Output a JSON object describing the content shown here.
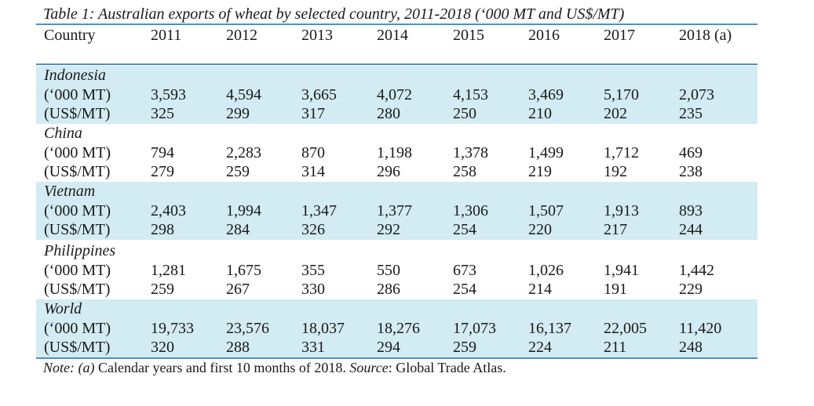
{
  "caption": "Table 1: Australian exports of wheat by selected country, 2011-2018 (‘000 MT and US$/MT)",
  "header": {
    "first": "Country",
    "years": [
      "2011",
      "2012",
      "2013",
      "2014",
      "2015",
      "2016",
      "2017",
      "2018 (a)"
    ]
  },
  "groups": [
    {
      "name": "Indonesia",
      "rows": [
        {
          "label": "(‘000 MT)",
          "values": [
            "3,593",
            "4,594",
            "3,665",
            "4,072",
            "4,153",
            "3,469",
            "5,170",
            "2,073"
          ]
        },
        {
          "label": "(US$/MT)",
          "values": [
            "325",
            "299",
            "317",
            "280",
            "250",
            "210",
            "202",
            "235"
          ]
        }
      ]
    },
    {
      "name": "China",
      "rows": [
        {
          "label": "(‘000 MT)",
          "values": [
            "794",
            "2,283",
            "870",
            "1,198",
            "1,378",
            "1,499",
            "1,712",
            "469"
          ]
        },
        {
          "label": "(US$/MT)",
          "values": [
            "279",
            "259",
            "314",
            "296",
            "258",
            "219",
            "192",
            "238"
          ]
        }
      ]
    },
    {
      "name": "Vietnam",
      "rows": [
        {
          "label": "(‘000 MT)",
          "values": [
            "2,403",
            "1,994",
            "1,347",
            "1,377",
            "1,306",
            "1,507",
            "1,913",
            "893"
          ]
        },
        {
          "label": "(US$/MT)",
          "values": [
            "298",
            "284",
            "326",
            "292",
            "254",
            "220",
            "217",
            "244"
          ]
        }
      ]
    },
    {
      "name": "Philippines",
      "rows": [
        {
          "label": "(‘000 MT)",
          "values": [
            "1,281",
            "1,675",
            "355",
            "550",
            "673",
            "1,026",
            "1,941",
            "1,442"
          ]
        },
        {
          "label": "(US$/MT)",
          "values": [
            "259",
            "267",
            "330",
            "286",
            "254",
            "214",
            "191",
            "229"
          ]
        }
      ]
    },
    {
      "name": "World",
      "rows": [
        {
          "label": "(‘000 MT)",
          "values": [
            "19,733",
            "23,576",
            "18,037",
            "18,276",
            "17,073",
            "16,137",
            "22,005",
            "11,420"
          ]
        },
        {
          "label": "(US$/MT)",
          "values": [
            "320",
            "288",
            "331",
            "294",
            "259",
            "224",
            "211",
            "248"
          ]
        }
      ]
    }
  ],
  "note": {
    "prefix": "Note: (a)",
    "text": " Calendar years and first 10 months of 2018. ",
    "source_label": "Source",
    "source_text": ": Global Trade Atlas."
  },
  "colors": {
    "rule": "#4a90c8",
    "shade": "#d3ebf3"
  }
}
